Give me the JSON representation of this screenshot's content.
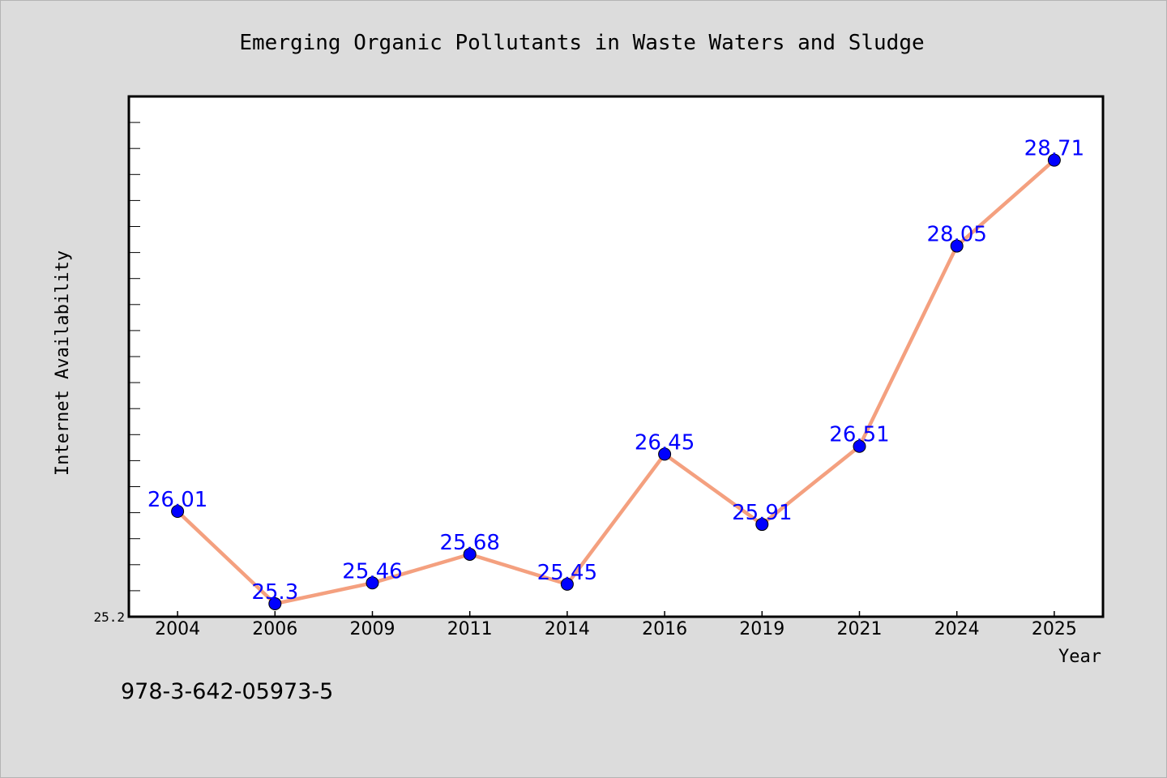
{
  "chart_data": {
    "type": "line",
    "title": "Emerging Organic Pollutants in Waste Waters and Sludge",
    "xlabel": "Year",
    "ylabel": "Internet Availability",
    "ytick_label": "25.2",
    "categories": [
      "2004",
      "2006",
      "2009",
      "2011",
      "2014",
      "2016",
      "2019",
      "2021",
      "2024",
      "2025"
    ],
    "series": [
      {
        "values": [
          26.01,
          25.3,
          25.46,
          25.68,
          25.45,
          26.45,
          25.91,
          26.51,
          28.05,
          28.71
        ],
        "labels": [
          "26.01",
          "25.3",
          "25.46",
          "25.68",
          "25.45",
          "26.45",
          "25.91",
          "26.51",
          "28.05",
          "28.71"
        ]
      }
    ],
    "ylim": [
      25.2,
      29.2
    ],
    "grid": false,
    "legend": "none",
    "colors": {
      "line": "#f4a07f",
      "marker": "#0000ff",
      "label": "#0000ff",
      "background": "#dcdcdc",
      "plot_background": "#ffffff"
    }
  },
  "footer": {
    "isbn": "978-3-642-05973-5"
  }
}
